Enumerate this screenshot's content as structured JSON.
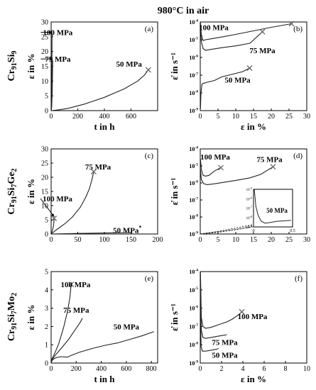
{
  "figure": {
    "title": "980°C in air"
  },
  "chart_data": [
    {
      "id": "a",
      "type": "line",
      "panel_label": "(a)",
      "row_label": [
        "Cr",
        "91",
        "Si",
        "9",
        ""
      ],
      "xlabel": "t in h",
      "ylabel": "ε in %",
      "xlim": [
        0,
        800
      ],
      "ylim": [
        0,
        30
      ],
      "log_y": false,
      "xticks": [
        0,
        200,
        400,
        600
      ],
      "yticks": [
        0,
        5,
        10,
        15,
        20,
        25,
        30
      ],
      "series": [
        {
          "name": "100 MPa",
          "x": [
            0,
            3,
            5,
            6.5,
            7.2
          ],
          "y": [
            0,
            1,
            6,
            18,
            26.5
          ]
        },
        {
          "name": "75 MPa",
          "x": [
            0,
            4,
            8,
            10,
            11.5
          ],
          "y": [
            0,
            1.5,
            6,
            12,
            17
          ]
        },
        {
          "name": "50 MPa",
          "x": [
            0,
            60,
            130,
            250,
            400,
            550,
            650,
            700,
            730
          ],
          "y": [
            0,
            0.3,
            0.8,
            2.2,
            4.5,
            7.4,
            10,
            12,
            13.8
          ]
        }
      ],
      "annotations": [
        {
          "text": "100 MPa",
          "x": 50,
          "y": 26.5,
          "arrow_to": [
            8,
            26.5
          ]
        },
        {
          "text": "75 MPa",
          "x": 50,
          "y": 17.5,
          "arrow_to": [
            13,
            17.5
          ]
        },
        {
          "text": "50 MPa",
          "x": 585,
          "y": 15.8
        }
      ],
      "fracture_marks": [
        [
          730,
          13.8
        ]
      ]
    },
    {
      "id": "b",
      "type": "line",
      "panel_label": "(b)",
      "xlabel": "ε in %",
      "ylabel": "ε̇ in s⁻¹",
      "xlim": [
        0,
        30
      ],
      "ylim": [
        -9,
        -4
      ],
      "log_y": true,
      "xticks": [
        0,
        5,
        10,
        15,
        20,
        25,
        30
      ],
      "yticks": [
        -9,
        -8,
        -7,
        -6,
        -5,
        -4
      ],
      "series": [
        {
          "name": "100 MPa",
          "x": [
            0.05,
            0.3,
            0.8,
            1.5,
            3,
            6,
            10,
            15,
            20,
            25.7
          ],
          "y": [
            -4.0,
            -4.7,
            -5.05,
            -5.0,
            -4.95,
            -4.85,
            -4.7,
            -4.5,
            -4.3,
            -4.1
          ]
        },
        {
          "name": "75 MPa",
          "x": [
            0.05,
            0.3,
            0.8,
            1.5,
            3,
            6,
            10,
            14,
            17.5
          ],
          "y": [
            -4.3,
            -5.1,
            -5.5,
            -5.6,
            -5.55,
            -5.45,
            -5.35,
            -5.2,
            -4.55
          ]
        },
        {
          "name": "50 MPa",
          "x": [
            0.05,
            0.2,
            0.5,
            1,
            2,
            4,
            6,
            8,
            10,
            12,
            13.9
          ],
          "y": [
            -8.9,
            -8.0,
            -7.5,
            -7.45,
            -7.4,
            -7.3,
            -7.1,
            -7.0,
            -6.9,
            -6.8,
            -6.6
          ]
        }
      ],
      "annotations": [
        {
          "text": "100 MPa",
          "x": 3.8,
          "y": -4.3
        },
        {
          "text": "75 MPa",
          "x": 17.5,
          "y": -5.6
        },
        {
          "text": "50 MPa",
          "x": 10.5,
          "y": -7.25
        }
      ],
      "fracture_marks": [
        [
          25.7,
          -4.1
        ],
        [
          17.5,
          -4.55
        ],
        [
          13.9,
          -6.6
        ]
      ]
    },
    {
      "id": "c",
      "type": "line",
      "panel_label": "(c)",
      "row_label": [
        "Cr",
        "91",
        "Si",
        "7",
        "Ge",
        "2"
      ],
      "xlabel": "",
      "ylabel": "ε in %",
      "xlim": [
        0,
        200
      ],
      "ylim": [
        0,
        30
      ],
      "log_y": false,
      "xticks": [
        0,
        50,
        100,
        150,
        200
      ],
      "yticks": [
        0,
        5,
        10,
        15,
        20,
        25,
        30
      ],
      "series": [
        {
          "name": "100 MPa",
          "x": [
            0,
            2,
            4,
            5,
            5.5
          ],
          "y": [
            0,
            1,
            2.5,
            4,
            5.5
          ]
        },
        {
          "name": "75 MPa",
          "x": [
            0,
            10,
            25,
            40,
            55,
            65,
            72,
            77,
            80
          ],
          "y": [
            0,
            1.5,
            3.5,
            6,
            9.5,
            13,
            16,
            19.5,
            22
          ]
        },
        {
          "name": "50 MPa",
          "x": [
            0,
            50,
            100,
            150
          ],
          "y": [
            0,
            0.2,
            0.35,
            0.5
          ]
        }
      ],
      "annotations": [
        {
          "text": "100 MPa",
          "x": 12,
          "y": 12.5,
          "arrow_to": [
            6,
            6
          ]
        },
        {
          "text": "75 MPa",
          "x": 88,
          "y": 23.8
        },
        {
          "text": "50 MPa",
          "x": 143,
          "y": 1.4,
          "suffix": "*"
        }
      ],
      "fracture_marks": [
        [
          80,
          22
        ],
        [
          5.5,
          5.5
        ]
      ]
    },
    {
      "id": "d",
      "type": "line",
      "panel_label": "(d)",
      "xlabel": "",
      "ylabel": "ε̇ in s⁻¹",
      "xlim": [
        0,
        30
      ],
      "ylim": [
        -9,
        -4
      ],
      "log_y": true,
      "xticks": [
        0,
        5,
        10,
        15,
        20,
        25,
        30
      ],
      "yticks": [
        -9,
        -8,
        -7,
        -6,
        -5,
        -4
      ],
      "series": [
        {
          "name": "100 MPa",
          "x": [
            0.05,
            0.3,
            0.8,
            1.5,
            2.5,
            4,
            5.8
          ],
          "y": [
            -4.6,
            -5.2,
            -5.55,
            -5.6,
            -5.55,
            -5.3,
            -5.1
          ]
        },
        {
          "name": "75 MPa",
          "x": [
            0.05,
            0.3,
            1,
            2,
            4,
            7,
            10,
            14,
            17,
            20.5
          ],
          "y": [
            -5.2,
            -5.8,
            -6.05,
            -6.1,
            -6.05,
            -5.95,
            -5.85,
            -5.7,
            -5.5,
            -5.05
          ]
        },
        {
          "name": "50 MPa",
          "x": [
            0,
            5,
            10,
            15,
            20,
            23,
            25
          ],
          "y": [
            -9.0,
            -8.9,
            -8.75,
            -8.55,
            -8.3,
            -8.15,
            -8.05
          ],
          "dotted": true
        },
        {
          "name": "50 MPa",
          "x": [
            0,
            5,
            10,
            15,
            20,
            24
          ],
          "y": [
            -9.0,
            -8.85,
            -8.65,
            -8.45,
            -8.25,
            -8.1
          ],
          "dotted": true
        }
      ],
      "annotations": [
        {
          "text": "100 MPa",
          "x": 4.2,
          "y": -4.45
        },
        {
          "text": "75 MPa",
          "x": 19.5,
          "y": -4.6
        }
      ],
      "fracture_marks": [
        [
          5.8,
          -5.1
        ],
        [
          20.5,
          -5.05
        ]
      ],
      "inset": {
        "xlim": [
          0,
          0.5
        ],
        "ylim": [
          -9,
          -5
        ],
        "log_y": true,
        "xticks": [
          0,
          0.5
        ],
        "yticks": [
          -9,
          -8,
          -7,
          -6,
          -5
        ],
        "series": [
          {
            "name": "50 MPa",
            "x": [
              0.01,
              0.03,
              0.06,
              0.1,
              0.15,
              0.2,
              0.3,
              0.4,
              0.48
            ],
            "y": [
              -5.0,
              -6.8,
              -7.8,
              -8.4,
              -8.6,
              -8.55,
              -8.4,
              -8.35,
              -8.3
            ]
          }
        ],
        "label": "50 MPa"
      }
    },
    {
      "id": "e",
      "type": "line",
      "panel_label": "(e)",
      "row_label": [
        "Cr",
        "91",
        "Si",
        "7",
        "Mo",
        "2"
      ],
      "xlabel": "t in h",
      "ylabel": "ε in %",
      "xlim": [
        0,
        850
      ],
      "ylim": [
        0,
        5
      ],
      "log_y": false,
      "xticks": [
        0,
        200,
        400,
        600,
        800
      ],
      "yticks": [
        0,
        1,
        2,
        3,
        4,
        5
      ],
      "series": [
        {
          "name": "100 MPa",
          "x": [
            0,
            5,
            30,
            60,
            100,
            130,
            150,
            160
          ],
          "y": [
            0,
            0.2,
            0.55,
            1.05,
            1.95,
            2.8,
            3.6,
            4.3
          ]
        },
        {
          "name": "75 MPa",
          "x": [
            0,
            5,
            30,
            80,
            140,
            190,
            230,
            250
          ],
          "y": [
            0,
            0.15,
            0.4,
            0.8,
            1.3,
            1.8,
            2.2,
            2.45
          ]
        },
        {
          "name": "50 MPa",
          "x": [
            0,
            10,
            40,
            80,
            130,
            160,
            230,
            330,
            430,
            530,
            630,
            730,
            820
          ],
          "y": [
            0,
            0.18,
            0.3,
            0.35,
            0.32,
            0.42,
            0.6,
            0.8,
            0.97,
            1.1,
            1.3,
            1.5,
            1.72
          ]
        }
      ],
      "annotations": [
        {
          "text": "100 MPa",
          "x": 195,
          "y": 4.3
        },
        {
          "text": "75 MPa",
          "x": 200,
          "y": 2.9
        },
        {
          "text": "50 MPa",
          "x": 600,
          "y": 2.0
        }
      ],
      "fracture_marks": [
        [
          160,
          4.3
        ]
      ]
    },
    {
      "id": "f",
      "type": "line",
      "panel_label": "(f)",
      "xlabel": "ε in %",
      "ylabel": "ε̇ in s⁻¹",
      "xlim": [
        0,
        10
      ],
      "ylim": [
        -9,
        -4
      ],
      "log_y": true,
      "xticks": [
        0,
        2,
        4,
        6,
        8,
        10
      ],
      "yticks": [
        -9,
        -8,
        -7,
        -6,
        -5,
        -4
      ],
      "series": [
        {
          "name": "100 MPa",
          "x": [
            0.02,
            0.1,
            0.25,
            0.5,
            1,
            1.5,
            2,
            2.5,
            3,
            3.5,
            3.9
          ],
          "y": [
            -4.0,
            -6.5,
            -7.0,
            -7.1,
            -7.05,
            -6.95,
            -6.85,
            -6.75,
            -6.6,
            -6.4,
            -6.2
          ]
        },
        {
          "name": "75 MPa",
          "x": [
            0.02,
            0.1,
            0.25,
            0.5,
            1,
            1.5,
            2,
            2.5
          ],
          "y": [
            -4.5,
            -7.2,
            -7.6,
            -7.65,
            -7.6,
            -7.55,
            -7.5,
            -7.45
          ]
        },
        {
          "name": "50 MPa",
          "x": [
            0.02,
            0.08,
            0.2,
            0.5,
            1,
            1.5,
            1.72
          ],
          "y": [
            -6.0,
            -8.1,
            -8.35,
            -8.35,
            -8.3,
            -8.25,
            -8.2
          ]
        }
      ],
      "annotations": [
        {
          "text": "100 MPa",
          "x": 4.9,
          "y": -6.45
        },
        {
          "text": "75 MPa",
          "x": 2.3,
          "y": -7.85
        },
        {
          "text": "50 MPa",
          "x": 2.3,
          "y": -8.55
        }
      ],
      "fracture_marks": [
        [
          3.9,
          -6.2
        ]
      ]
    }
  ]
}
